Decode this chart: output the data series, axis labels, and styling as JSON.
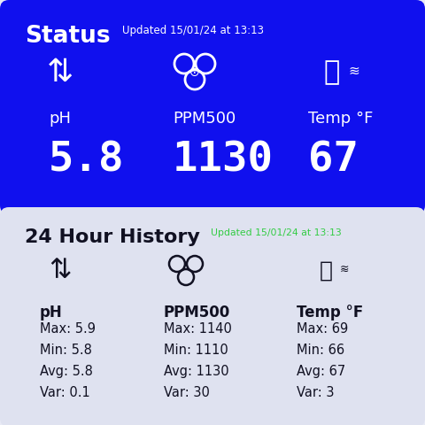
{
  "title_status": "Status",
  "title_history": "24 Hour History",
  "updated_text": "Updated 15/01/24 at 13:13",
  "bg_color": "#e8eaf5",
  "card_blue_color": "#1010ee",
  "card_light_color": "#dfe2f0",
  "white": "#ffffff",
  "green": "#33cc44",
  "dark_text": "#111122",
  "status_ph": "5.8",
  "status_ppm": "1130",
  "status_temp": "67",
  "ph_max": "5.9",
  "ph_min": "5.8",
  "ph_avg": "5.8",
  "ph_var": "0.1",
  "ppm_max": "1140",
  "ppm_min": "1110",
  "ppm_avg": "1130",
  "ppm_var": "30",
  "temp_max": "69",
  "temp_min": "66",
  "temp_avg": "67",
  "temp_var": "3"
}
